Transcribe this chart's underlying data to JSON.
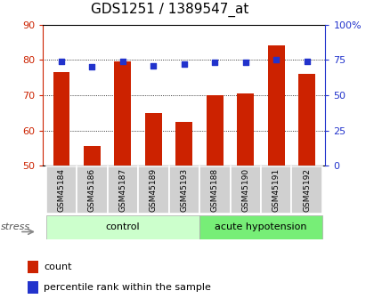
{
  "title": "GDS1251 / 1389547_at",
  "samples": [
    "GSM45184",
    "GSM45186",
    "GSM45187",
    "GSM45189",
    "GSM45193",
    "GSM45188",
    "GSM45190",
    "GSM45191",
    "GSM45192"
  ],
  "counts": [
    76.5,
    55.5,
    79.5,
    65.0,
    62.5,
    70.0,
    70.5,
    84.0,
    76.0
  ],
  "percentiles": [
    74,
    70,
    74,
    71,
    72,
    73,
    73,
    75,
    74
  ],
  "groups": [
    "control",
    "control",
    "control",
    "control",
    "control",
    "acute hypotension",
    "acute hypotension",
    "acute hypotension",
    "acute hypotension"
  ],
  "group_colors": {
    "control": "#ccffcc",
    "acute hypotension": "#77ee77"
  },
  "ylim_left": [
    50,
    90
  ],
  "ylim_right": [
    0,
    100
  ],
  "yticks_left": [
    50,
    60,
    70,
    80,
    90
  ],
  "yticks_right": [
    0,
    25,
    50,
    75,
    100
  ],
  "ytick_labels_right": [
    "0",
    "25",
    "50",
    "75",
    "100%"
  ],
  "bar_color": "#cc2200",
  "dot_color": "#2233cc",
  "bar_width": 0.55,
  "title_fontsize": 11,
  "tick_fontsize": 8,
  "legend_fontsize": 8,
  "stress_label": "stress",
  "sample_label_fontsize": 6.5,
  "group_label_fontsize": 8
}
